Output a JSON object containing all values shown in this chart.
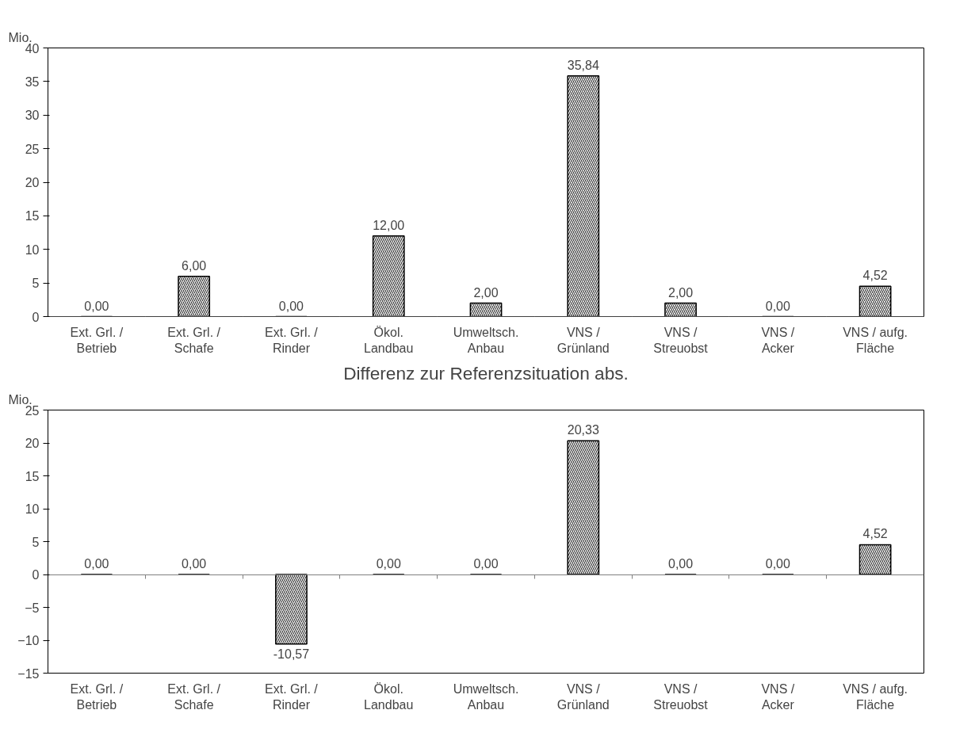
{
  "chart_data": [
    {
      "type": "bar",
      "ylabel": "Mio.",
      "categories": [
        "Ext. Grl. /\nBetrieb",
        "Ext. Grl. /\nSchafe",
        "Ext. Grl. /\nRinder",
        "Ökol.\nLandbau",
        "Umweltsch.\nAnbau",
        "VNS /\nGrünland",
        "VNS /\nStreuobst",
        "VNS /\nAcker",
        "VNS / aufg.\nFläche"
      ],
      "values": [
        0,
        6,
        0,
        12,
        2,
        35.84,
        2,
        0,
        4.52
      ],
      "color": "#000000",
      "value_labels": [
        "0,00",
        "6,00",
        "0,00",
        "12,00",
        "2,00",
        "35,84",
        "2,00",
        "0,00",
        "4,52"
      ],
      "ylim": [
        0,
        40
      ],
      "yticks": [
        0,
        5,
        10,
        15,
        20,
        25,
        30,
        35,
        40
      ]
    },
    {
      "type": "bar",
      "title": "Differenz zur Referenzsituation abs.",
      "ylabel": "Mio.",
      "categories": [
        "Ext. Grl. /\nBetrieb",
        "Ext. Grl. /\nSchafe",
        "Ext. Grl. /\nRinder",
        "Ökol.\nLandbau",
        "Umweltsch.\nAnbau",
        "VNS /\nGrünland",
        "VNS /\nStreuobst",
        "VNS /\nAcker",
        "VNS / aufg.\nFläche"
      ],
      "values": [
        0,
        0,
        -10.57,
        0,
        0,
        20.33,
        0,
        0,
        4.52
      ],
      "color": "#000000",
      "value_labels": [
        "0,00",
        "0,00",
        "-10,57",
        "0,00",
        "0,00",
        "20,33",
        "0,00",
        "0,00",
        "4,52"
      ],
      "ylim": [
        -15,
        25
      ],
      "yticks": [
        -15,
        -10,
        -5,
        0,
        5,
        10,
        15,
        20,
        25
      ]
    }
  ]
}
